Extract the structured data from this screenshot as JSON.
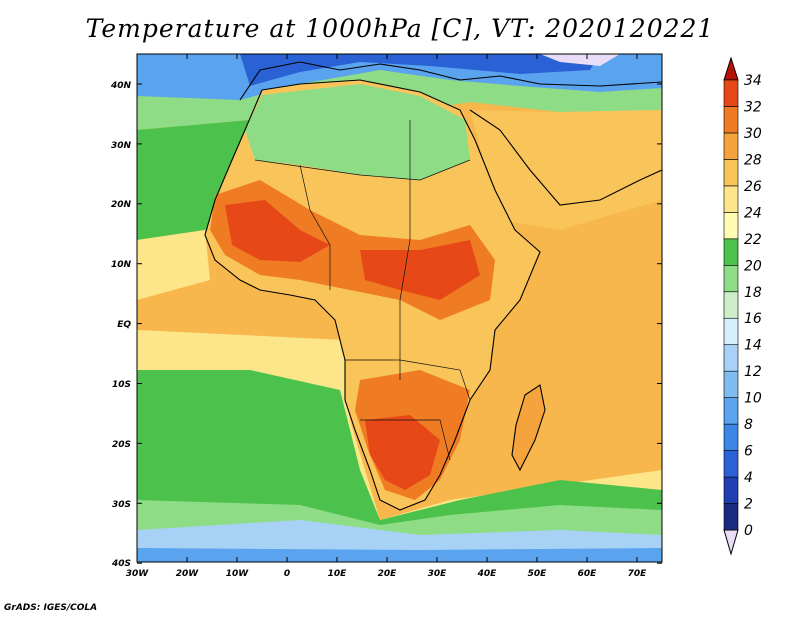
{
  "title": "Temperature at 1000hPa [C], VT: 2020120221",
  "footer": "GrADS: IGES/COLA",
  "map": {
    "lon_labels": [
      "30W",
      "20W",
      "10W",
      "0",
      "10E",
      "20E",
      "30E",
      "40E",
      "50E",
      "60E",
      "70E"
    ],
    "lat_labels": [
      "40N",
      "30N",
      "20N",
      "10N",
      "EQ",
      "10S",
      "20S",
      "30S",
      "40S"
    ]
  },
  "colorbar": {
    "levels": [
      "0",
      "2",
      "4",
      "6",
      "8",
      "10",
      "12",
      "14",
      "16",
      "18",
      "20",
      "22",
      "24",
      "26",
      "28",
      "30",
      "32",
      "34"
    ],
    "colors": [
      "#1a2a80",
      "#1f3fb0",
      "#2a62d6",
      "#3d86e6",
      "#5aa3ee",
      "#7fbcf2",
      "#a7d2f5",
      "#d6f0fb",
      "#cdeec9",
      "#8fdc86",
      "#4cc24c",
      "#fffbb0",
      "#fde68a",
      "#f9c45a",
      "#f5a33c",
      "#ef7c22",
      "#e64818",
      "#c91c10"
    ],
    "under_color": "#e8dcf6",
    "over_color": "#b51208"
  }
}
